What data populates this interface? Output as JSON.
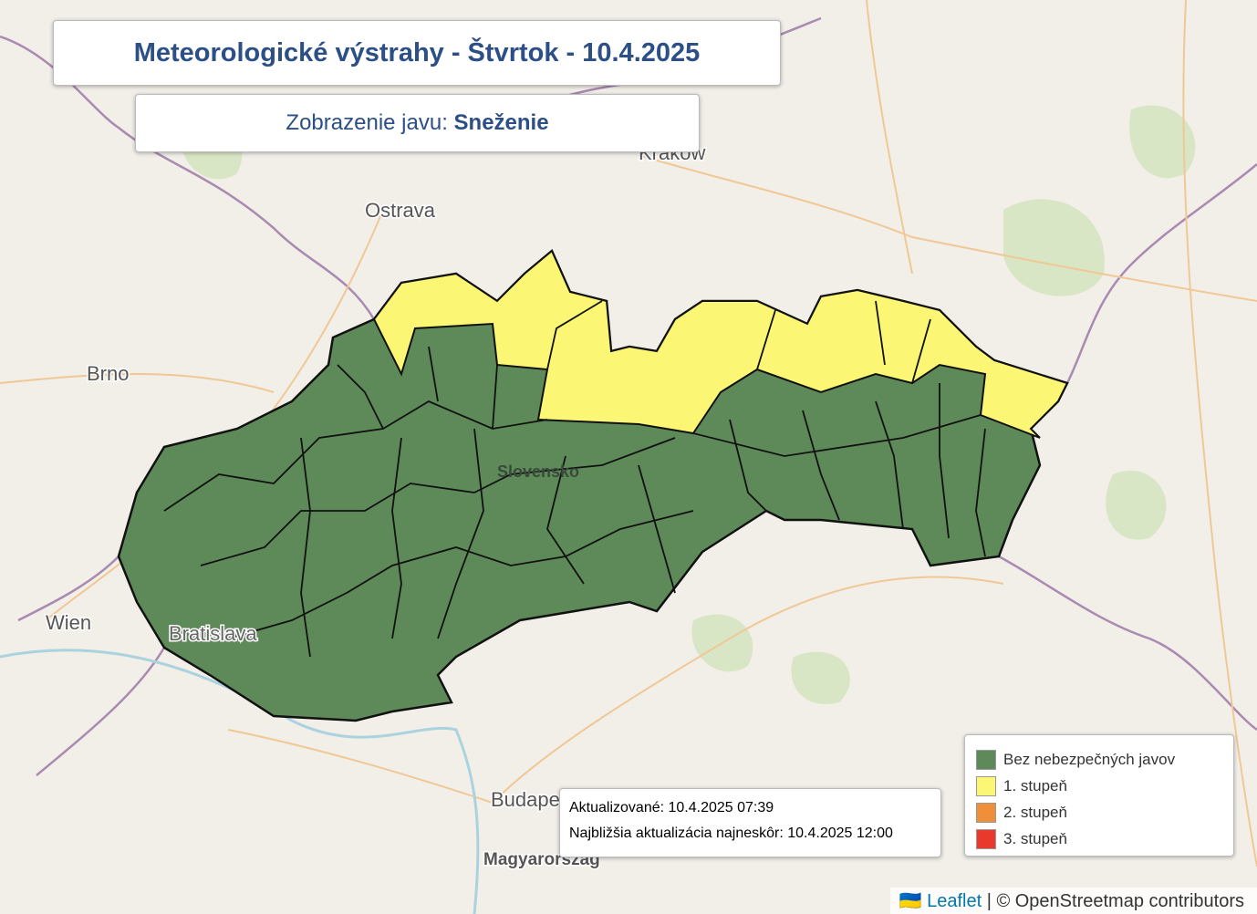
{
  "header": {
    "title": "Meteorologické výstrahy - Štvrtok - 10.4.2025",
    "phenomenon_label": "Zobrazenie javu:",
    "phenomenon": "Sneženie"
  },
  "map_labels": {
    "krakow": "Kraków",
    "ostrava": "Ostrava",
    "brno": "Brno",
    "wien": "Wien",
    "bratislava": "Bratislava",
    "slovensko": "Slovensko",
    "budapest": "Budapest",
    "magyarorszag": "Magyarország"
  },
  "info": {
    "updated": "Aktualizované: 10.4.2025 07:39",
    "next_update": "Najbližšia aktualizácia najneskôr: 10.4.2025 12:00"
  },
  "legend": [
    {
      "label": "Bez nebezpečných javov",
      "color": "#5e8a59"
    },
    {
      "label": "1. stupeň",
      "color": "#fbf674"
    },
    {
      "label": "2. stupeň",
      "color": "#ef8f3a"
    },
    {
      "label": "3. stupeň",
      "color": "#e8392c"
    }
  ],
  "attribution": {
    "leaflet": "Leaflet",
    "osm": "| © OpenStreetmap contributors"
  }
}
